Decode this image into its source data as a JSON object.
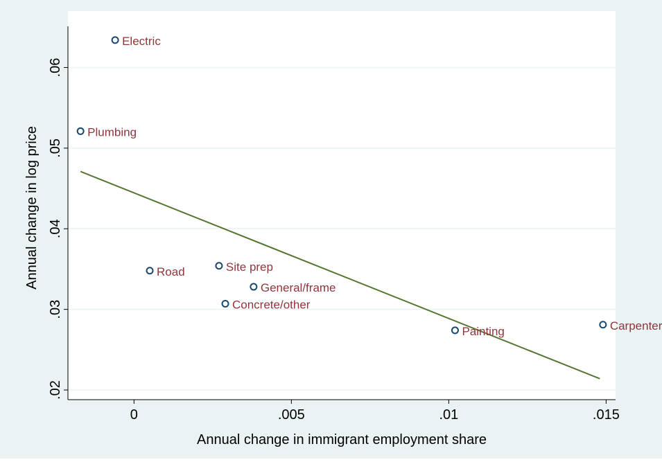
{
  "colors": {
    "outer_background": "#eaf2f3",
    "plot_background": "#ffffff",
    "gridline": "#eaf2f3",
    "axis": "#000000",
    "marker_stroke": "#1a476f",
    "marker_label": "#90353b",
    "fit_line": "#55752f"
  },
  "chart_data": {
    "type": "scatter",
    "title": "",
    "xlabel": "Annual change in immigrant employment share",
    "ylabel": "Annual change in log price",
    "xlim": [
      -0.0021,
      0.0153
    ],
    "ylim": [
      0.0188,
      0.067
    ],
    "x_ticks": [
      {
        "value": 0,
        "label": "0"
      },
      {
        "value": 0.005,
        "label": ".005"
      },
      {
        "value": 0.01,
        "label": ".01"
      },
      {
        "value": 0.015,
        "label": ".015"
      }
    ],
    "y_ticks": [
      {
        "value": 0.02,
        "label": ".02"
      },
      {
        "value": 0.03,
        "label": ".03"
      },
      {
        "value": 0.04,
        "label": ".04"
      },
      {
        "value": 0.05,
        "label": ".05"
      },
      {
        "value": 0.06,
        "label": ".06"
      }
    ],
    "grid": true,
    "points": [
      {
        "label": "Electric",
        "x": -0.0006,
        "y": 0.0634
      },
      {
        "label": "Plumbing",
        "x": -0.0017,
        "y": 0.0521
      },
      {
        "label": "Road",
        "x": 0.0005,
        "y": 0.0348
      },
      {
        "label": "Site prep",
        "x": 0.0027,
        "y": 0.0354
      },
      {
        "label": "General/frame",
        "x": 0.0038,
        "y": 0.0328
      },
      {
        "label": "Concrete/other",
        "x": 0.0029,
        "y": 0.0307
      },
      {
        "label": "Painting",
        "x": 0.0102,
        "y": 0.0274
      },
      {
        "label": "Carpenter",
        "x": 0.0149,
        "y": 0.0281
      }
    ],
    "fit_line": {
      "x": [
        -0.0017,
        0.0148
      ],
      "y": [
        0.0471,
        0.0214
      ]
    }
  }
}
